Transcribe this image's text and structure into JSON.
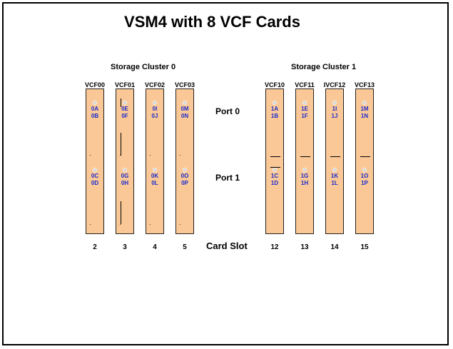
{
  "title": "VSM4 with 8 VCF Cards",
  "clusters": [
    {
      "label": "Storage Cluster 0"
    },
    {
      "label": "Storage Cluster 1"
    }
  ],
  "port_labels": {
    "port0": "Port 0",
    "port1": "Port 1"
  },
  "slot_label": "Card Slot",
  "cards": [
    {
      "name": "VCF00",
      "slot": "2",
      "port0_a": "0A",
      "port0_b": "0B",
      "port1_a": "0C",
      "port1_b": "0D"
    },
    {
      "name": "VCF01",
      "slot": "3",
      "port0_a": "0E",
      "port0_b": "0F",
      "port1_a": "0G",
      "port1_b": "0H"
    },
    {
      "name": "VCF02",
      "slot": "4",
      "port0_a": "0I",
      "port0_b": "0J",
      "port1_a": "0K",
      "port1_b": "0L"
    },
    {
      "name": "VCF03",
      "slot": "5",
      "port0_a": "0M",
      "port0_b": "0N",
      "port1_a": "0O",
      "port1_b": "0P"
    },
    {
      "name": "VCF10",
      "slot": "12",
      "port0_a": "1A",
      "port0_b": "1B",
      "port1_a": "1C",
      "port1_b": "1D"
    },
    {
      "name": "VCF11",
      "slot": "13",
      "port0_a": "1E",
      "port0_b": "1F",
      "port1_a": "1G",
      "port1_b": "1H"
    },
    {
      "name": "IVCF12",
      "slot": "14",
      "port0_a": "1I",
      "port0_b": "1J",
      "port1_a": "1K",
      "port1_b": "1L"
    },
    {
      "name": "VCF13",
      "slot": "15",
      "port0_a": "1M",
      "port0_b": "1N",
      "port1_a": "1O",
      "port1_b": "1P"
    }
  ]
}
